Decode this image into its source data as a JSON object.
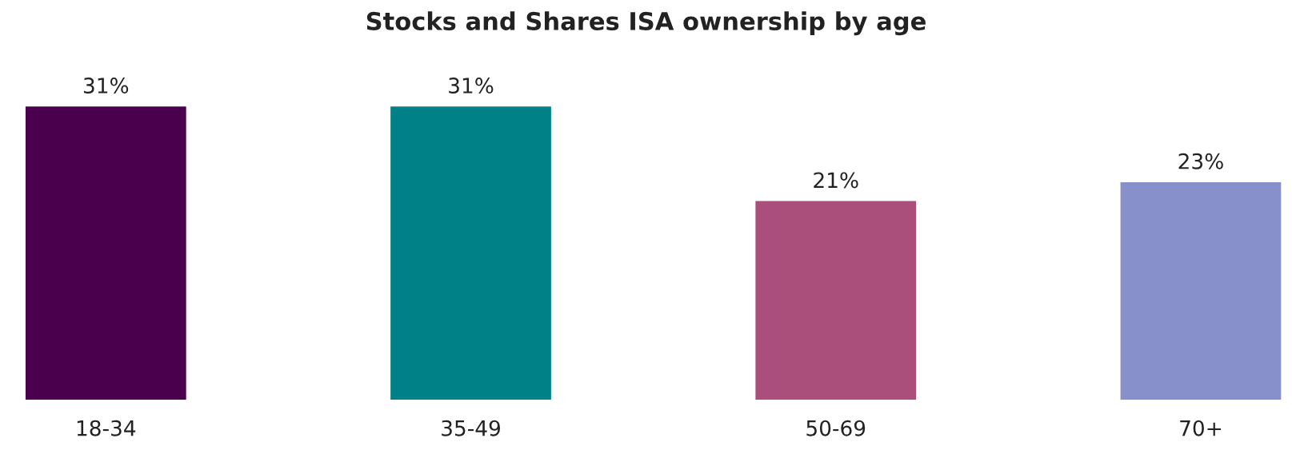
{
  "chart_data": {
    "type": "bar",
    "title": "Stocks and Shares ISA ownership by age",
    "categories": [
      "18-34",
      "35-49",
      "50-69",
      "70+"
    ],
    "values": [
      31,
      31,
      21,
      23
    ],
    "colors": [
      "#4a004c",
      "#008087",
      "#aa4f7b",
      "#8890cc"
    ],
    "value_labels": [
      "31%",
      "31%",
      "21%",
      "23%"
    ],
    "grid": false,
    "legend": false
  }
}
